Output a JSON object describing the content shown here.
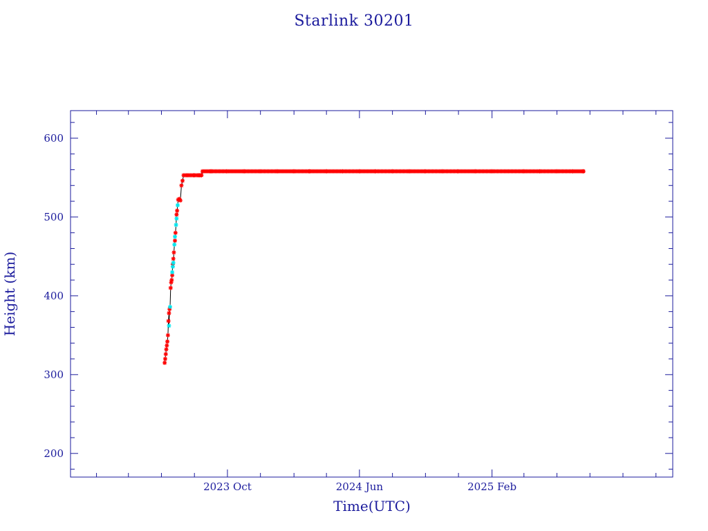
{
  "chart_data": {
    "type": "scatter",
    "title": "Starlink 30201",
    "xlabel": "Time(UTC)",
    "ylabel": "Height (km)",
    "x_axis": {
      "type": "date",
      "range": [
        "2022-12-15",
        "2026-01-01"
      ],
      "ticks": [
        {
          "date": "2023-10-01",
          "label": "2023 Oct"
        },
        {
          "date": "2024-06-01",
          "label": "2024 Jun"
        },
        {
          "date": "2025-02-01",
          "label": "2025 Feb"
        }
      ]
    },
    "y_axis": {
      "range": [
        170,
        635
      ],
      "ticks": [
        200,
        300,
        400,
        500,
        600
      ],
      "minor_step": 20
    },
    "grid": false,
    "colors": {
      "frame": "#1a1a9c",
      "line": "#000000",
      "primary_marker": "#ff0000",
      "secondary_marker": "#00e5ee"
    },
    "series": [
      {
        "marker": "red-star",
        "color": "#ff0000",
        "points": [
          [
            "2023-06-07",
            315
          ],
          [
            "2023-06-08",
            320
          ],
          [
            "2023-06-09",
            326
          ],
          [
            "2023-06-10",
            332
          ],
          [
            "2023-06-11",
            337
          ],
          [
            "2023-06-12",
            342
          ],
          [
            "2023-06-13",
            350
          ],
          [
            "2023-06-14",
            368
          ],
          [
            "2023-06-15",
            378
          ],
          [
            "2023-06-16",
            383
          ],
          [
            "2023-06-18",
            410
          ],
          [
            "2023-06-19",
            417
          ],
          [
            "2023-06-20",
            420
          ],
          [
            "2023-06-21",
            426
          ],
          [
            "2023-06-22",
            440
          ],
          [
            "2023-06-23",
            447
          ],
          [
            "2023-06-24",
            455
          ],
          [
            "2023-06-26",
            470
          ],
          [
            "2023-06-27",
            480
          ],
          [
            "2023-06-29",
            503
          ],
          [
            "2023-06-30",
            508
          ],
          [
            "2023-07-02",
            522
          ],
          [
            "2023-07-04",
            523
          ],
          [
            "2023-07-06",
            521
          ],
          [
            "2023-07-08",
            540
          ],
          [
            "2023-07-10",
            546
          ],
          [
            "2023-07-12",
            553
          ],
          [
            "2023-07-20",
            553
          ],
          [
            "2023-08-01",
            553
          ],
          [
            "2023-08-10",
            553
          ],
          [
            "2023-08-14",
            553
          ],
          [
            "2023-08-16",
            558
          ],
          [
            "2023-09-01",
            558
          ],
          [
            "2023-10-01",
            558
          ],
          [
            "2023-11-01",
            558
          ],
          [
            "2023-12-01",
            558
          ],
          [
            "2024-01-01",
            558
          ],
          [
            "2024-02-01",
            558
          ],
          [
            "2024-03-01",
            558
          ],
          [
            "2024-04-01",
            558
          ],
          [
            "2024-05-01",
            558
          ],
          [
            "2024-06-01",
            558
          ],
          [
            "2024-07-01",
            558
          ],
          [
            "2024-08-01",
            558
          ],
          [
            "2024-09-01",
            558
          ],
          [
            "2024-10-01",
            558
          ],
          [
            "2024-11-01",
            558
          ],
          [
            "2024-12-01",
            558
          ],
          [
            "2025-01-01",
            558
          ],
          [
            "2025-02-01",
            558
          ],
          [
            "2025-03-01",
            558
          ],
          [
            "2025-04-01",
            558
          ],
          [
            "2025-05-01",
            558
          ],
          [
            "2025-06-01",
            558
          ],
          [
            "2025-07-01",
            558
          ],
          [
            "2025-07-20",
            558
          ]
        ]
      },
      {
        "marker": "cyan-star",
        "color": "#00e5ee",
        "points": [
          [
            "2023-06-15",
            362
          ],
          [
            "2023-06-17",
            386
          ],
          [
            "2023-06-21",
            430
          ],
          [
            "2023-06-22",
            437
          ],
          [
            "2023-06-23",
            442
          ],
          [
            "2023-06-25",
            465
          ],
          [
            "2023-06-26",
            475
          ],
          [
            "2023-06-28",
            490
          ],
          [
            "2023-06-29",
            498
          ],
          [
            "2023-07-01",
            515
          ]
        ]
      }
    ]
  }
}
